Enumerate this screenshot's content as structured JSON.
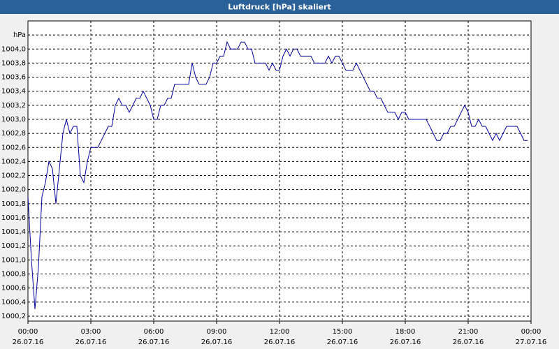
{
  "chart_data": {
    "type": "line",
    "title": "Luftdruck [hPa] skaliert",
    "x": [
      0,
      10,
      20,
      30,
      40,
      50,
      60,
      70,
      80,
      90,
      100,
      110,
      120,
      130,
      140,
      150,
      160,
      170,
      180,
      190,
      200,
      210,
      220,
      230,
      240,
      250,
      260,
      270,
      280,
      290,
      300,
      310,
      320,
      330,
      340,
      350,
      360,
      370,
      380,
      390,
      400,
      410,
      420,
      430,
      440,
      450,
      460,
      470,
      480,
      490,
      500,
      510,
      520,
      530,
      540,
      550,
      560,
      570,
      580,
      590,
      600,
      610,
      620,
      630,
      640,
      650,
      660,
      670,
      680,
      690,
      700,
      710,
      720,
      730,
      740,
      750,
      760,
      770,
      780,
      790,
      800,
      810,
      820,
      830,
      840,
      850,
      860,
      870,
      880,
      890,
      900,
      910,
      920,
      930,
      940,
      950,
      960,
      970,
      980,
      990,
      1000,
      1010,
      1020,
      1030,
      1040,
      1050,
      1060,
      1070,
      1080,
      1090,
      1100,
      1110,
      1120,
      1130,
      1140,
      1150,
      1160,
      1170,
      1180,
      1190,
      1200,
      1210,
      1220,
      1230,
      1240,
      1250,
      1260,
      1270,
      1280,
      1290,
      1300,
      1310,
      1320,
      1330,
      1340,
      1350,
      1360,
      1370,
      1380,
      1390,
      1400,
      1410,
      1420,
      1430
    ],
    "series": [
      {
        "color": "#0000a0",
        "values": [
          1001.9,
          1001.0,
          1000.3,
          1000.9,
          1001.9,
          1002.1,
          1002.4,
          1002.3,
          1001.8,
          1002.3,
          1002.8,
          1003.0,
          1002.8,
          1002.9,
          1002.9,
          1002.2,
          1002.1,
          1002.4,
          1002.6,
          1002.6,
          1002.6,
          1002.7,
          1002.8,
          1002.9,
          1002.9,
          1003.2,
          1003.3,
          1003.2,
          1003.2,
          1003.1,
          1003.2,
          1003.3,
          1003.3,
          1003.4,
          1003.3,
          1003.2,
          1003.0,
          1003.0,
          1003.2,
          1003.2,
          1003.3,
          1003.3,
          1003.5,
          1003.5,
          1003.5,
          1003.5,
          1003.5,
          1003.8,
          1003.6,
          1003.5,
          1003.5,
          1003.5,
          1003.6,
          1003.8,
          1003.8,
          1003.9,
          1003.9,
          1004.1,
          1004.0,
          1004.0,
          1004.0,
          1004.1,
          1004.1,
          1004.0,
          1004.0,
          1003.8,
          1003.8,
          1003.8,
          1003.8,
          1003.7,
          1003.8,
          1003.7,
          1003.7,
          1003.9,
          1004.0,
          1003.9,
          1004.0,
          1004.0,
          1003.9,
          1003.9,
          1003.9,
          1003.9,
          1003.8,
          1003.8,
          1003.8,
          1003.8,
          1003.9,
          1003.8,
          1003.9,
          1003.9,
          1003.8,
          1003.7,
          1003.7,
          1003.7,
          1003.8,
          1003.7,
          1003.6,
          1003.5,
          1003.4,
          1003.4,
          1003.3,
          1003.3,
          1003.2,
          1003.1,
          1003.1,
          1003.1,
          1003.0,
          1003.1,
          1003.1,
          1003.0,
          1003.0,
          1003.0,
          1003.0,
          1003.0,
          1003.0,
          1002.9,
          1002.8,
          1002.7,
          1002.7,
          1002.8,
          1002.8,
          1002.9,
          1002.9,
          1003.0,
          1003.1,
          1003.2,
          1003.1,
          1002.9,
          1002.9,
          1003.0,
          1002.9,
          1002.9,
          1002.8,
          1002.7,
          1002.8,
          1002.7,
          1002.8,
          1002.9,
          1002.9,
          1002.9,
          1002.9,
          1002.8,
          1002.7,
          1002.7
        ]
      }
    ],
    "xlim": [
      0,
      1440
    ],
    "xticks": [
      {
        "value": 0,
        "label": "00:00"
      },
      {
        "value": 180,
        "label": "03:00"
      },
      {
        "value": 360,
        "label": "06:00"
      },
      {
        "value": 540,
        "label": "09:00"
      },
      {
        "value": 720,
        "label": "12:00"
      },
      {
        "value": 900,
        "label": "15:00"
      },
      {
        "value": 1080,
        "label": "18:00"
      },
      {
        "value": 1260,
        "label": "21:00"
      },
      {
        "value": 1440,
        "label": "00:00"
      }
    ],
    "xtick_dates": [
      "26.07.16",
      "26.07.16",
      "26.07.16",
      "26.07.16",
      "26.07.16",
      "26.07.16",
      "26.07.16",
      "26.07.16",
      "27.07.16"
    ],
    "ylim": [
      1000.13,
      1004.4
    ],
    "yticks": [
      {
        "value": 1000.2,
        "label": "1000,2"
      },
      {
        "value": 1000.4,
        "label": "1000,4"
      },
      {
        "value": 1000.6,
        "label": "1000,6"
      },
      {
        "value": 1000.8,
        "label": "1000,8"
      },
      {
        "value": 1001.0,
        "label": "1001,0"
      },
      {
        "value": 1001.2,
        "label": "1001,2"
      },
      {
        "value": 1001.4,
        "label": "1001,4"
      },
      {
        "value": 1001.6,
        "label": "1001,6"
      },
      {
        "value": 1001.8,
        "label": "1001,8"
      },
      {
        "value": 1002.0,
        "label": "1002,0"
      },
      {
        "value": 1002.2,
        "label": "1002,2"
      },
      {
        "value": 1002.4,
        "label": "1002,4"
      },
      {
        "value": 1002.6,
        "label": "1002,6"
      },
      {
        "value": 1002.8,
        "label": "1002,8"
      },
      {
        "value": 1003.0,
        "label": "1003,0"
      },
      {
        "value": 1003.2,
        "label": "1003,2"
      },
      {
        "value": 1003.4,
        "label": "1003,4"
      },
      {
        "value": 1003.6,
        "label": "1003,6"
      },
      {
        "value": 1003.8,
        "label": "1003,8"
      },
      {
        "value": 1004.0,
        "label": "1004,0"
      },
      {
        "value": 1004.2,
        "label": "hPa"
      }
    ],
    "grid": true
  }
}
